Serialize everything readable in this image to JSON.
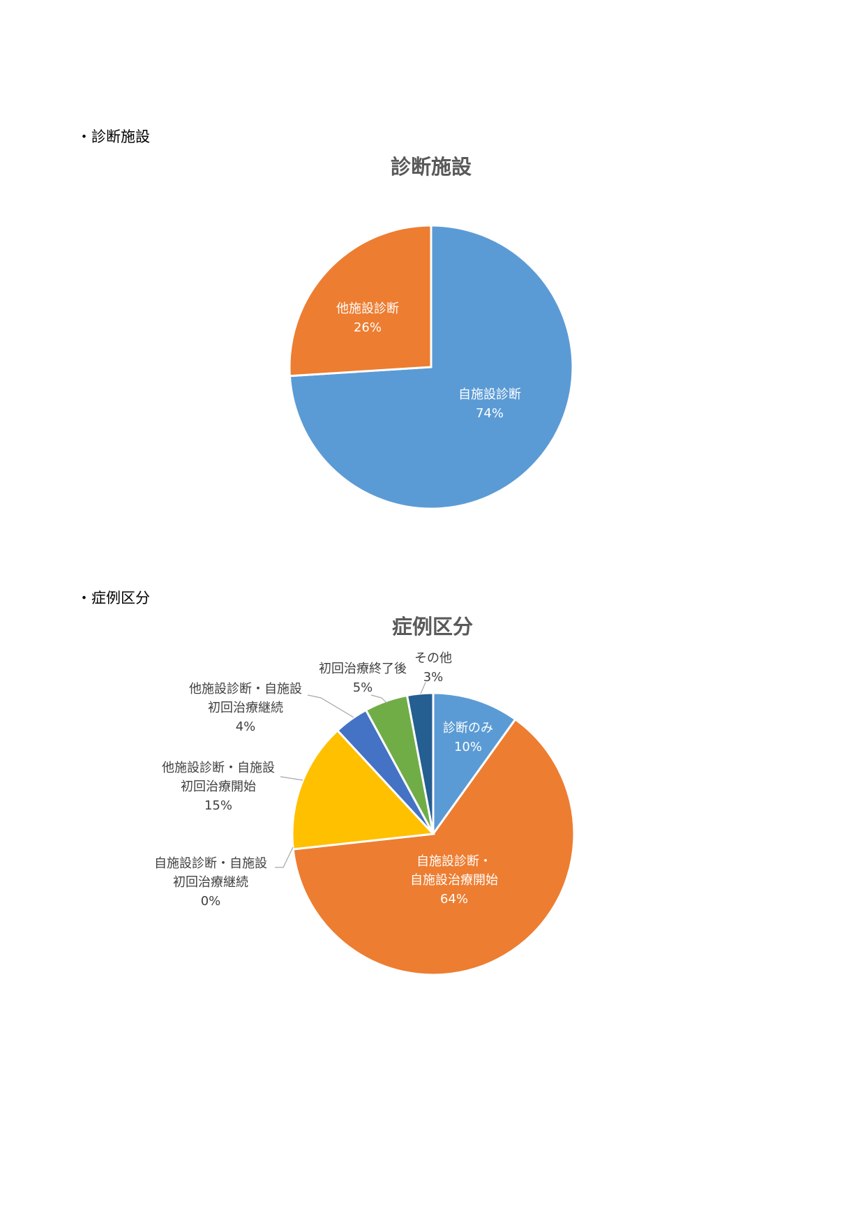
{
  "sections": [
    {
      "label": "・診断施設"
    },
    {
      "label": "・症例区分"
    }
  ],
  "chart_data": [
    {
      "type": "pie",
      "title": "診断施設",
      "start": "top, clockwise",
      "slices": [
        {
          "label": "自施設診断",
          "value": 74,
          "value_label": "74%",
          "color": "#5B9BD5"
        },
        {
          "label": "他施設診断",
          "value": 26,
          "value_label": "26%",
          "color": "#ED7D31"
        }
      ]
    },
    {
      "type": "pie",
      "title": "症例区分",
      "start": "top, clockwise",
      "slices": [
        {
          "label": "診断のみ",
          "value": 10,
          "value_label": "10%",
          "color": "#5B9BD5"
        },
        {
          "label": "自施設診断・自施設治療開始",
          "value": 64,
          "value_label": "64%",
          "color": "#ED7D31"
        },
        {
          "label": "自施設診断・自施設初回治療継続",
          "value": 0,
          "value_label": "0%",
          "color": "#A5A5A5"
        },
        {
          "label": "他施設診断・自施設初回治療開始",
          "value": 15,
          "value_label": "15%",
          "color": "#FFC000"
        },
        {
          "label": "他施設診断・自施設初回治療継続",
          "value": 4,
          "value_label": "4%",
          "color": "#4472C4"
        },
        {
          "label": "初回治療終了後",
          "value": 5,
          "value_label": "5%",
          "color": "#70AD47"
        },
        {
          "label": "その他",
          "value": 3,
          "value_label": "3%",
          "color": "#255E91"
        }
      ]
    }
  ]
}
